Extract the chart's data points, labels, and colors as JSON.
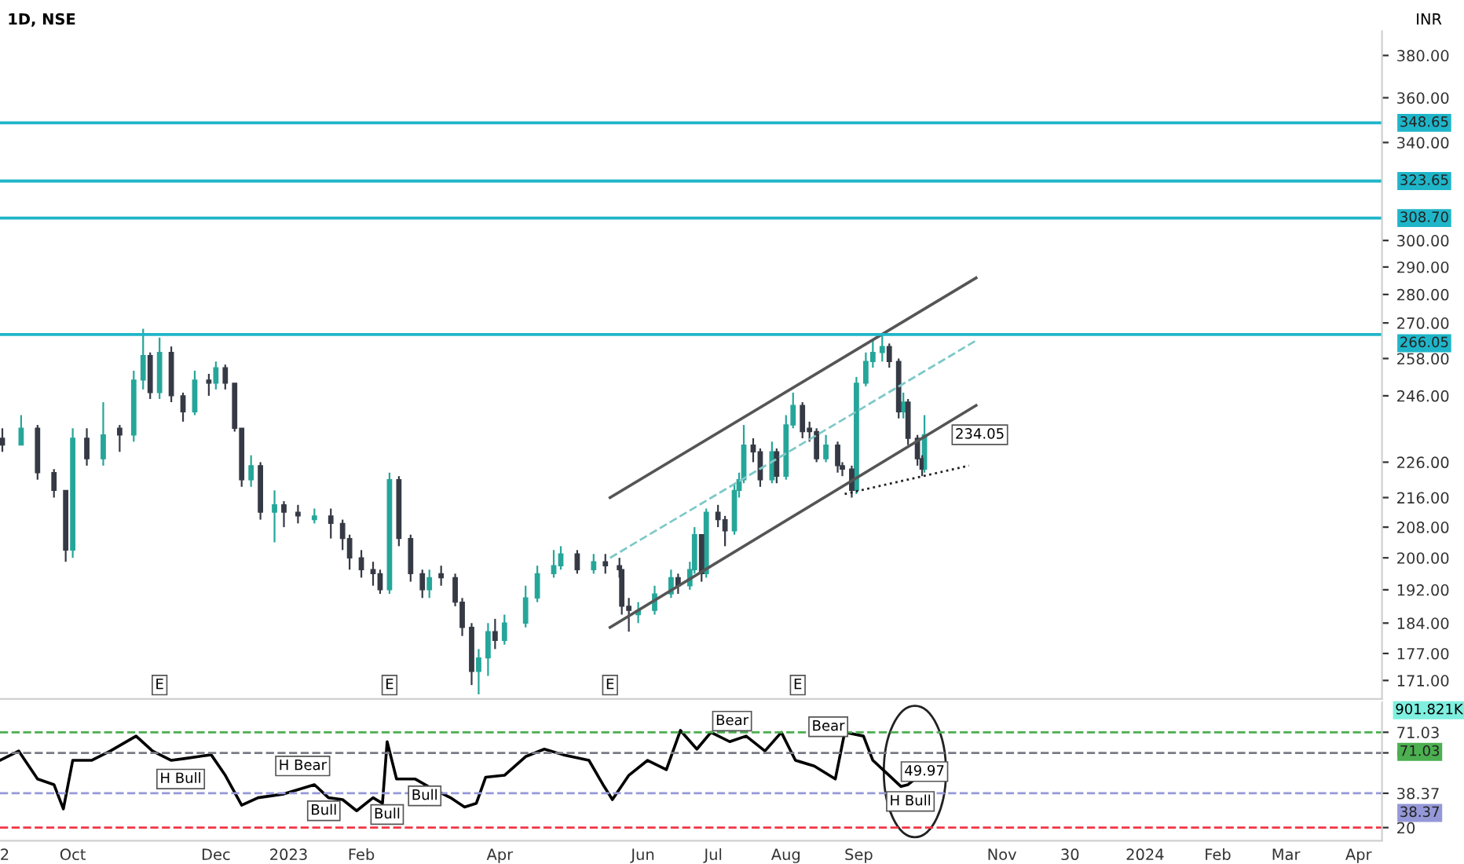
{
  "chart_data": [
    {
      "type": "candlestick",
      "title": "1D, NSE",
      "ylabel": "INR",
      "log": true,
      "grid": false,
      "legend": false,
      "tick_labels": "y",
      "xlim": [
        "2022-08-31",
        "2024-04-11"
      ],
      "ylim": [
        167,
        392
      ],
      "yticks": [
        {
          "value": 171,
          "label": "171.00"
        },
        {
          "value": 177,
          "label": "177.00"
        },
        {
          "value": 184,
          "label": "184.00"
        },
        {
          "value": 192,
          "label": "192.00"
        },
        {
          "value": 200,
          "label": "200.00"
        },
        {
          "value": 208,
          "label": "208.00"
        },
        {
          "value": 216,
          "label": "216.00"
        },
        {
          "value": 226,
          "label": "226.00"
        },
        {
          "value": 246,
          "label": "246.00"
        },
        {
          "value": 258,
          "label": "258.00"
        },
        {
          "value": 270,
          "label": "270.00"
        },
        {
          "value": 280,
          "label": "280.00"
        },
        {
          "value": 290,
          "label": "290.00"
        },
        {
          "value": 300,
          "label": "300.00"
        },
        {
          "value": 340,
          "label": "340.00"
        },
        {
          "value": 360,
          "label": "360.00"
        },
        {
          "value": 380,
          "label": "380.00"
        }
      ],
      "series": [
        {
          "color": "#26a69a",
          "x": [
            "2022-09-09",
            "2022-10-01",
            "2022-10-14",
            "2022-10-27",
            "2022-10-31",
            "2022-11-07",
            "2022-11-22",
            "2022-12-01",
            "2022-12-16",
            "2022-12-26",
            "2023-01-12",
            "2023-02-13",
            "2023-03-02",
            "2023-03-23",
            "2023-03-27",
            "2023-04-03",
            "2023-04-12",
            "2023-04-17",
            "2023-04-24",
            "2023-04-27",
            "2023-05-11",
            "2023-05-30",
            "2023-06-06",
            "2023-06-13",
            "2023-06-21",
            "2023-06-23",
            "2023-06-28",
            "2023-07-10",
            "2023-07-12",
            "2023-07-14",
            "2023-07-26",
            "2023-08-01",
            "2023-08-04",
            "2023-08-18",
            "2023-08-31",
            "2023-09-04",
            "2023-09-07",
            "2023-09-11",
            "2023-09-20",
            "2023-09-29"
          ],
          "ohlc": [
            [
              231,
              240,
              231,
              236
            ],
            [
              202,
              236,
              200,
              233
            ],
            [
              227,
              244,
              225,
              234
            ],
            [
              234,
              254,
              232,
              251
            ],
            [
              251,
              268,
              248,
              259
            ],
            [
              247,
              265,
              245,
              260
            ],
            [
              241,
              254,
              240,
              251
            ],
            [
              250,
              257,
              248,
              255
            ],
            [
              221,
              228,
              219,
              225
            ],
            [
              212,
              218,
              204,
              214
            ],
            [
              210,
              213,
              209,
              211
            ],
            [
              192,
              223,
              191,
              221
            ],
            [
              192,
              197,
              190,
              195
            ],
            [
              173,
              178,
              168,
              176
            ],
            [
              176,
              184,
              172,
              182
            ],
            [
              180,
              186,
              179,
              184
            ],
            [
              184,
              193,
              183,
              190
            ],
            [
              190,
              198,
              189,
              196
            ],
            [
              196,
              202,
              195,
              198
            ],
            [
              198,
              203,
              197,
              201
            ],
            [
              197,
              201,
              196,
              199
            ],
            [
              186,
              189,
              184,
              187
            ],
            [
              187,
              193,
              186,
              191
            ],
            [
              191,
              197,
              190,
              195
            ],
            [
              193,
              199,
              192,
              197
            ],
            [
              197,
              208,
              196,
              206
            ],
            [
              196,
              213,
              195,
              212
            ],
            [
              207,
              220,
              206,
              218
            ],
            [
              218,
              223,
              216,
              221
            ],
            [
              221,
              237,
              220,
              231
            ],
            [
              221,
              232,
              220,
              229
            ],
            [
              222,
              240,
              221,
              237
            ],
            [
              237,
              247,
              236,
              243
            ],
            [
              227,
              234,
              226,
              231
            ],
            [
              218,
              252,
              217,
              250
            ],
            [
              250,
              260,
              249,
              257
            ],
            [
              257,
              264,
              255,
              260
            ],
            [
              260,
              266,
              257,
              262
            ],
            [
              241,
              247,
              239,
              244
            ],
            [
              224,
              240,
              223,
              234.05
            ]
          ]
        },
        {
          "color": "#363a45",
          "x": [
            "2022-09-01",
            "2022-09-16",
            "2022-09-23",
            "2022-09-28",
            "2022-10-07",
            "2022-10-21",
            "2022-11-03",
            "2022-11-12",
            "2022-11-17",
            "2022-11-28",
            "2022-12-05",
            "2022-12-09",
            "2022-12-12",
            "2022-12-20",
            "2022-12-30",
            "2023-01-05",
            "2023-01-19",
            "2023-01-24",
            "2023-01-27",
            "2023-02-01",
            "2023-02-06",
            "2023-02-09",
            "2023-02-17",
            "2023-02-22",
            "2023-02-27",
            "2023-03-07",
            "2023-03-13",
            "2023-03-16",
            "2023-03-20",
            "2023-03-30",
            "2023-05-04",
            "2023-05-16",
            "2023-05-22",
            "2023-05-23",
            "2023-05-26",
            "2023-06-16",
            "2023-06-26",
            "2023-07-03",
            "2023-07-06",
            "2023-07-18",
            "2023-07-21",
            "2023-07-28",
            "2023-08-08",
            "2023-08-11",
            "2023-08-14",
            "2023-08-23",
            "2023-08-25",
            "2023-08-29",
            "2023-09-14",
            "2023-09-18",
            "2023-09-22",
            "2023-09-26",
            "2023-09-28"
          ],
          "ohlc": [
            [
              233,
              236,
              229,
              231
            ],
            [
              236,
              237,
              221,
              223
            ],
            [
              223,
              224,
              216,
              218
            ],
            [
              218,
              218,
              199,
              202
            ],
            [
              233,
              236,
              225,
              227
            ],
            [
              236,
              237,
              229,
              234
            ],
            [
              259,
              260,
              245,
              247
            ],
            [
              260,
              262,
              244,
              246
            ],
            [
              246,
              247,
              238,
              241
            ],
            [
              251,
              253,
              246,
              250
            ],
            [
              255,
              256,
              248,
              250
            ],
            [
              250,
              250,
              235,
              236
            ],
            [
              236,
              236,
              219,
              221
            ],
            [
              225,
              226,
              210,
              212
            ],
            [
              214,
              215,
              208,
              212
            ],
            [
              212,
              214,
              209,
              211
            ],
            [
              211,
              213,
              205,
              209
            ],
            [
              209,
              210,
              202,
              205
            ],
            [
              205,
              206,
              197,
              200
            ],
            [
              200,
              202,
              195,
              197
            ],
            [
              197,
              199,
              193,
              196
            ],
            [
              196,
              197,
              191,
              192
            ],
            [
              221,
              222,
              203,
              205
            ],
            [
              205,
              206,
              194,
              196
            ],
            [
              196,
              197,
              190,
              192
            ],
            [
              196,
              198,
              193,
              195
            ],
            [
              195,
              196,
              188,
              189
            ],
            [
              189,
              190,
              181,
              183
            ],
            [
              183,
              184,
              170,
              173
            ],
            [
              182,
              185,
              178,
              180
            ],
            [
              201,
              202,
              196,
              197
            ],
            [
              199,
              201,
              196,
              198
            ],
            [
              198,
              200,
              195,
              197
            ],
            [
              197,
              197,
              186,
              188
            ],
            [
              188,
              190,
              182,
              187
            ],
            [
              195,
              196,
              191,
              193
            ],
            [
              206,
              206,
              194,
              196
            ],
            [
              212,
              214,
              208,
              210
            ],
            [
              210,
              211,
              203,
              207
            ],
            [
              231,
              233,
              226,
              229
            ],
            [
              229,
              230,
              219,
              221
            ],
            [
              229,
              230,
              220,
              222
            ],
            [
              243,
              244,
              233,
              235
            ],
            [
              236,
              238,
              232,
              235
            ],
            [
              235,
              236,
              226,
              227
            ],
            [
              231,
              232,
              223,
              225
            ],
            [
              225,
              226,
              222,
              224
            ],
            [
              224,
              225,
              216,
              218
            ],
            [
              262,
              263,
              255,
              257
            ],
            [
              257,
              258,
              239,
              241
            ],
            [
              244,
              245,
              231,
              233
            ],
            [
              233,
              234,
              225,
              227
            ],
            [
              227,
              228,
              222,
              224
            ]
          ]
        },
        {
          "type": "line",
          "color": "#555555",
          "line_style": "solid",
          "x": [
            "2023-05-18",
            "2023-10-21"
          ],
          "values": [
            216,
            286
          ]
        },
        {
          "type": "line",
          "color": "#7fc8c8",
          "line_style": "dashed",
          "x": [
            "2023-05-18",
            "2023-10-21"
          ],
          "values": [
            200,
            264
          ]
        },
        {
          "type": "line",
          "color": "#555555",
          "line_style": "solid",
          "x": [
            "2023-05-18",
            "2023-10-21"
          ],
          "values": [
            183,
            243
          ]
        },
        {
          "type": "line",
          "color": "#222222",
          "line_style": "dotted",
          "x": [
            "2023-08-26",
            "2023-10-18"
          ],
          "values": [
            217,
            225
          ]
        }
      ],
      "ref_lines": [
        {
          "axis": "y",
          "value": 348.65,
          "label": "348.65",
          "color": "#1fb5c9"
        },
        {
          "axis": "y",
          "value": 323.65,
          "label": "323.65",
          "color": "#1fb5c9"
        },
        {
          "axis": "y",
          "value": 308.7,
          "label": "308.70",
          "color": "#1fb5c9"
        },
        {
          "axis": "y",
          "value": 266.05,
          "label": "266.05",
          "color": "#1fb5c9"
        }
      ],
      "annotations": [
        {
          "text": "234.05",
          "x": "2023-09-29",
          "y": 234.05
        },
        {
          "text": "E",
          "x": "2022-11-07",
          "y": 170
        },
        {
          "text": "E",
          "x": "2023-02-13",
          "y": 170
        },
        {
          "text": "E",
          "x": "2023-05-18",
          "y": 170
        },
        {
          "text": "E",
          "x": "2023-08-06",
          "y": 170
        },
        "901.821K"
      ]
    },
    {
      "type": "line",
      "grid": false,
      "legend": false,
      "xlim": [
        "2022-08-31",
        "2024-04-11"
      ],
      "ylim": [
        13,
        87
      ],
      "yticks": [
        20,
        38.37,
        60,
        71.03
      ],
      "xticks": [
        {
          "value": "2022-09-02",
          "label": "2"
        },
        {
          "value": "2022-10-01",
          "label": "Oct"
        },
        {
          "value": "2022-12-01",
          "label": "Dec"
        },
        {
          "value": "2023-01-01",
          "label": "2023"
        },
        {
          "value": "2023-02-01",
          "label": "Feb"
        },
        {
          "value": "2023-04-01",
          "label": "Apr"
        },
        {
          "value": "2023-06-01",
          "label": "Jun"
        },
        {
          "value": "2023-07-01",
          "label": "Jul"
        },
        {
          "value": "2023-08-01",
          "label": "Aug"
        },
        {
          "value": "2023-09-01",
          "label": "Sep"
        },
        {
          "value": "2023-11-01",
          "label": "Nov"
        },
        {
          "value": "2023-11-30",
          "label": "30"
        },
        {
          "value": "2024-01-01",
          "label": "2024"
        },
        {
          "value": "2024-02-01",
          "label": "Feb"
        },
        {
          "value": "2024-03-01",
          "label": "Mar"
        },
        {
          "value": "2024-04-01",
          "label": "Apr"
        }
      ],
      "series": [
        {
          "color": "#000000",
          "x": [
            "2022-08-31",
            "2022-09-08",
            "2022-09-16",
            "2022-09-23",
            "2022-09-27",
            "2022-10-01",
            "2022-10-09",
            "2022-10-17",
            "2022-10-28",
            "2022-11-04",
            "2022-11-12",
            "2022-11-18",
            "2022-11-29",
            "2022-12-05",
            "2022-12-12",
            "2022-12-19",
            "2022-12-30",
            "2023-01-12",
            "2023-01-18",
            "2023-01-24",
            "2023-01-30",
            "2023-02-06",
            "2023-02-10",
            "2023-02-12",
            "2023-02-16",
            "2023-02-24",
            "2023-03-03",
            "2023-03-11",
            "2023-03-17",
            "2023-03-22",
            "2023-03-26",
            "2023-04-03",
            "2023-04-12",
            "2023-04-20",
            "2023-04-28",
            "2023-05-09",
            "2023-05-15",
            "2023-05-19",
            "2023-05-26",
            "2023-06-03",
            "2023-06-11",
            "2023-06-17",
            "2023-06-24",
            "2023-06-30",
            "2023-07-08",
            "2023-07-15",
            "2023-07-23",
            "2023-07-30",
            "2023-08-05",
            "2023-08-13",
            "2023-08-22",
            "2023-08-26",
            "2023-09-03",
            "2023-09-07",
            "2023-09-13",
            "2023-09-19",
            "2023-09-22",
            "2023-09-29"
          ],
          "values": [
            56,
            61,
            46,
            43,
            30,
            56,
            56,
            61,
            69,
            61,
            56,
            57,
            59,
            48,
            32,
            36,
            38,
            43,
            36,
            35,
            29,
            36,
            33,
            66,
            46,
            46,
            41,
            36,
            31,
            33,
            47,
            48,
            58,
            62,
            59,
            56,
            43,
            35,
            48,
            56,
            51,
            72,
            62,
            71,
            66,
            69,
            61,
            71,
            56,
            53,
            46,
            71,
            69,
            56,
            49,
            42,
            43,
            50
          ]
        }
      ],
      "ref_lines": [
        {
          "axis": "y",
          "value": 71.03,
          "label": "71.03",
          "color": "#4caf50",
          "line_style": "dashed"
        },
        {
          "axis": "y",
          "value": 60,
          "color": "#787b86",
          "line_style": "dashed"
        },
        {
          "axis": "y",
          "value": 38.37,
          "label": "38.37",
          "color": "#9598d8",
          "line_style": "dashed"
        },
        {
          "axis": "y",
          "value": 20,
          "color": "#f23645",
          "line_style": "dashed"
        }
      ],
      "annotations": [
        {
          "text": "49.97",
          "x": "2023-09-29",
          "y": 49.97
        },
        {
          "text": "H Bull",
          "x": "2022-11-16",
          "y": 46
        },
        {
          "text": "H Bear",
          "x": "2023-01-07",
          "y": 53
        },
        {
          "text": "Bull",
          "x": "2023-01-16",
          "y": 29
        },
        {
          "text": "Bull",
          "x": "2023-02-12",
          "y": 27
        },
        {
          "text": "Bull",
          "x": "2023-02-28",
          "y": 37
        },
        {
          "text": "Bear",
          "x": "2023-07-09",
          "y": 77
        },
        {
          "text": "Bear",
          "x": "2023-08-19",
          "y": 74
        },
        {
          "text": "H Bull",
          "x": "2023-09-23",
          "y": 34
        }
      ]
    }
  ]
}
